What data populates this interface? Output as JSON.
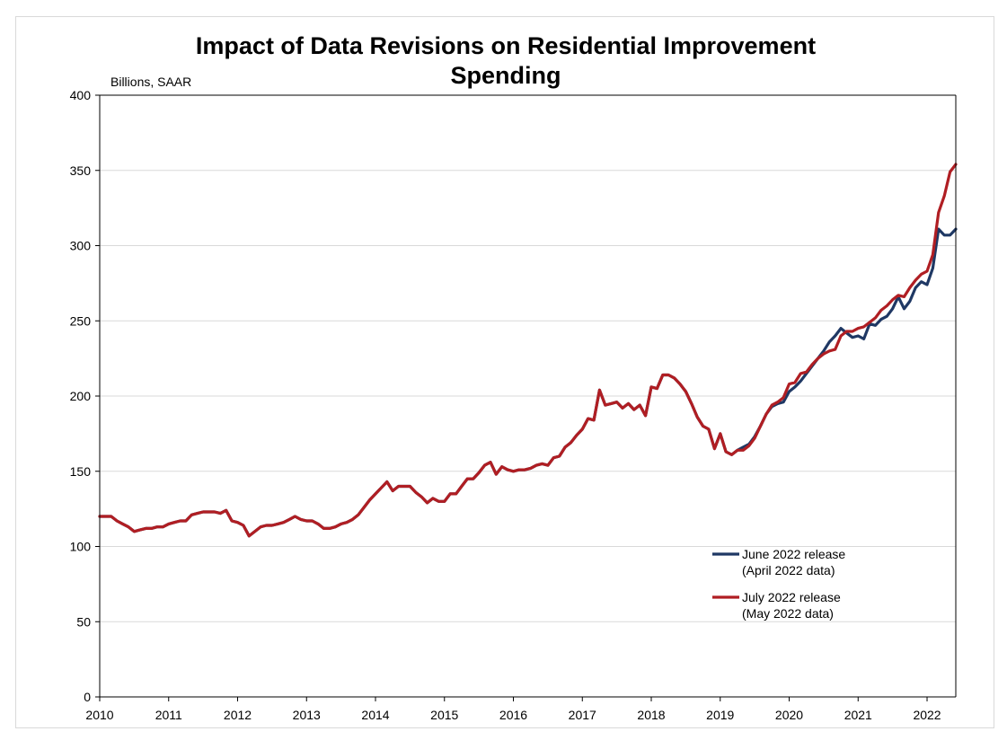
{
  "chart_data": {
    "type": "line",
    "title_lines": [
      "Impact of Data Revisions on Residential Improvement",
      "Spending"
    ],
    "unit_label": "Billions, SAAR",
    "xlim": [
      2010.0,
      2022.4167
    ],
    "ylim": [
      0,
      400
    ],
    "yticks": [
      0,
      50,
      100,
      150,
      200,
      250,
      300,
      350,
      400
    ],
    "xticks": [
      "2010",
      "2011",
      "2012",
      "2013",
      "2014",
      "2015",
      "2016",
      "2017",
      "2018",
      "2019",
      "2020",
      "2021",
      "2022"
    ],
    "grid": "horizontal",
    "legend_position": "bottom-right",
    "series": [
      {
        "name_lines": [
          "June 2022 release",
          "(April 2022 data)"
        ],
        "color": "#1f3864",
        "points": [
          [
            2010.0,
            120
          ],
          [
            2010.083,
            120
          ],
          [
            2010.167,
            120
          ],
          [
            2010.25,
            117
          ],
          [
            2010.333,
            115
          ],
          [
            2010.417,
            113
          ],
          [
            2010.5,
            110
          ],
          [
            2010.583,
            111
          ],
          [
            2010.667,
            112
          ],
          [
            2010.75,
            112
          ],
          [
            2010.833,
            113
          ],
          [
            2010.917,
            113
          ],
          [
            2011.0,
            115
          ],
          [
            2011.083,
            116
          ],
          [
            2011.167,
            117
          ],
          [
            2011.25,
            117
          ],
          [
            2011.333,
            121
          ],
          [
            2011.417,
            122
          ],
          [
            2011.5,
            123
          ],
          [
            2011.583,
            123
          ],
          [
            2011.667,
            123
          ],
          [
            2011.75,
            122
          ],
          [
            2011.833,
            124
          ],
          [
            2011.917,
            117
          ],
          [
            2012.0,
            116
          ],
          [
            2012.083,
            114
          ],
          [
            2012.167,
            107
          ],
          [
            2012.25,
            110
          ],
          [
            2012.333,
            113
          ],
          [
            2012.417,
            114
          ],
          [
            2012.5,
            114
          ],
          [
            2012.583,
            115
          ],
          [
            2012.667,
            116
          ],
          [
            2012.75,
            118
          ],
          [
            2012.833,
            120
          ],
          [
            2012.917,
            118
          ],
          [
            2013.0,
            117
          ],
          [
            2013.083,
            117
          ],
          [
            2013.167,
            115
          ],
          [
            2013.25,
            112
          ],
          [
            2013.333,
            112
          ],
          [
            2013.417,
            113
          ],
          [
            2013.5,
            115
          ],
          [
            2013.583,
            116
          ],
          [
            2013.667,
            118
          ],
          [
            2013.75,
            121
          ],
          [
            2013.833,
            126
          ],
          [
            2013.917,
            131
          ],
          [
            2014.0,
            135
          ],
          [
            2014.083,
            139
          ],
          [
            2014.167,
            143
          ],
          [
            2014.25,
            137
          ],
          [
            2014.333,
            140
          ],
          [
            2014.417,
            140
          ],
          [
            2014.5,
            140
          ],
          [
            2014.583,
            136
          ],
          [
            2014.667,
            133
          ],
          [
            2014.75,
            129
          ],
          [
            2014.833,
            132
          ],
          [
            2014.917,
            130
          ],
          [
            2015.0,
            130
          ],
          [
            2015.083,
            135
          ],
          [
            2015.167,
            135
          ],
          [
            2015.25,
            140
          ],
          [
            2015.333,
            145
          ],
          [
            2015.417,
            145
          ],
          [
            2015.5,
            149
          ],
          [
            2015.583,
            154
          ],
          [
            2015.667,
            156
          ],
          [
            2015.75,
            148
          ],
          [
            2015.833,
            153
          ],
          [
            2015.917,
            151
          ],
          [
            2016.0,
            150
          ],
          [
            2016.083,
            151
          ],
          [
            2016.167,
            151
          ],
          [
            2016.25,
            152
          ],
          [
            2016.333,
            154
          ],
          [
            2016.417,
            155
          ],
          [
            2016.5,
            154
          ],
          [
            2016.583,
            159
          ],
          [
            2016.667,
            160
          ],
          [
            2016.75,
            166
          ],
          [
            2016.833,
            169
          ],
          [
            2016.917,
            174
          ],
          [
            2017.0,
            178
          ],
          [
            2017.083,
            185
          ],
          [
            2017.167,
            184
          ],
          [
            2017.25,
            204
          ],
          [
            2017.333,
            194
          ],
          [
            2017.417,
            195
          ],
          [
            2017.5,
            196
          ],
          [
            2017.583,
            192
          ],
          [
            2017.667,
            195
          ],
          [
            2017.75,
            191
          ],
          [
            2017.833,
            194
          ],
          [
            2017.917,
            187
          ],
          [
            2018.0,
            206
          ],
          [
            2018.083,
            205
          ],
          [
            2018.167,
            214
          ],
          [
            2018.25,
            214
          ],
          [
            2018.333,
            212
          ],
          [
            2018.417,
            208
          ],
          [
            2018.5,
            203
          ],
          [
            2018.583,
            195
          ],
          [
            2018.667,
            186
          ],
          [
            2018.75,
            180
          ],
          [
            2018.833,
            178
          ],
          [
            2018.917,
            165
          ],
          [
            2019.0,
            175
          ],
          [
            2019.083,
            163
          ],
          [
            2019.167,
            161
          ],
          [
            2019.25,
            164
          ],
          [
            2019.333,
            166
          ],
          [
            2019.417,
            168
          ],
          [
            2019.5,
            173
          ],
          [
            2019.583,
            180
          ],
          [
            2019.667,
            188
          ],
          [
            2019.75,
            193
          ],
          [
            2019.833,
            195
          ],
          [
            2019.917,
            196
          ],
          [
            2020.0,
            203
          ],
          [
            2020.083,
            206
          ],
          [
            2020.167,
            210
          ],
          [
            2020.25,
            215
          ],
          [
            2020.333,
            220
          ],
          [
            2020.417,
            225
          ],
          [
            2020.5,
            230
          ],
          [
            2020.583,
            236
          ],
          [
            2020.667,
            240
          ],
          [
            2020.75,
            245
          ],
          [
            2020.833,
            242
          ],
          [
            2020.917,
            239
          ],
          [
            2021.0,
            240
          ],
          [
            2021.083,
            238
          ],
          [
            2021.167,
            248
          ],
          [
            2021.25,
            247
          ],
          [
            2021.333,
            251
          ],
          [
            2021.417,
            253
          ],
          [
            2021.5,
            258
          ],
          [
            2021.583,
            266
          ],
          [
            2021.667,
            258
          ],
          [
            2021.75,
            263
          ],
          [
            2021.833,
            272
          ],
          [
            2021.917,
            276
          ],
          [
            2022.0,
            274
          ],
          [
            2022.083,
            285
          ],
          [
            2022.167,
            311
          ],
          [
            2022.25,
            307
          ],
          [
            2022.333,
            307
          ],
          [
            2022.417,
            311
          ]
        ]
      },
      {
        "name_lines": [
          "July 2022 release",
          "(May 2022 data)"
        ],
        "color": "#b01e23",
        "points": [
          [
            2010.0,
            120
          ],
          [
            2010.083,
            120
          ],
          [
            2010.167,
            120
          ],
          [
            2010.25,
            117
          ],
          [
            2010.333,
            115
          ],
          [
            2010.417,
            113
          ],
          [
            2010.5,
            110
          ],
          [
            2010.583,
            111
          ],
          [
            2010.667,
            112
          ],
          [
            2010.75,
            112
          ],
          [
            2010.833,
            113
          ],
          [
            2010.917,
            113
          ],
          [
            2011.0,
            115
          ],
          [
            2011.083,
            116
          ],
          [
            2011.167,
            117
          ],
          [
            2011.25,
            117
          ],
          [
            2011.333,
            121
          ],
          [
            2011.417,
            122
          ],
          [
            2011.5,
            123
          ],
          [
            2011.583,
            123
          ],
          [
            2011.667,
            123
          ],
          [
            2011.75,
            122
          ],
          [
            2011.833,
            124
          ],
          [
            2011.917,
            117
          ],
          [
            2012.0,
            116
          ],
          [
            2012.083,
            114
          ],
          [
            2012.167,
            107
          ],
          [
            2012.25,
            110
          ],
          [
            2012.333,
            113
          ],
          [
            2012.417,
            114
          ],
          [
            2012.5,
            114
          ],
          [
            2012.583,
            115
          ],
          [
            2012.667,
            116
          ],
          [
            2012.75,
            118
          ],
          [
            2012.833,
            120
          ],
          [
            2012.917,
            118
          ],
          [
            2013.0,
            117
          ],
          [
            2013.083,
            117
          ],
          [
            2013.167,
            115
          ],
          [
            2013.25,
            112
          ],
          [
            2013.333,
            112
          ],
          [
            2013.417,
            113
          ],
          [
            2013.5,
            115
          ],
          [
            2013.583,
            116
          ],
          [
            2013.667,
            118
          ],
          [
            2013.75,
            121
          ],
          [
            2013.833,
            126
          ],
          [
            2013.917,
            131
          ],
          [
            2014.0,
            135
          ],
          [
            2014.083,
            139
          ],
          [
            2014.167,
            143
          ],
          [
            2014.25,
            137
          ],
          [
            2014.333,
            140
          ],
          [
            2014.417,
            140
          ],
          [
            2014.5,
            140
          ],
          [
            2014.583,
            136
          ],
          [
            2014.667,
            133
          ],
          [
            2014.75,
            129
          ],
          [
            2014.833,
            132
          ],
          [
            2014.917,
            130
          ],
          [
            2015.0,
            130
          ],
          [
            2015.083,
            135
          ],
          [
            2015.167,
            135
          ],
          [
            2015.25,
            140
          ],
          [
            2015.333,
            145
          ],
          [
            2015.417,
            145
          ],
          [
            2015.5,
            149
          ],
          [
            2015.583,
            154
          ],
          [
            2015.667,
            156
          ],
          [
            2015.75,
            148
          ],
          [
            2015.833,
            153
          ],
          [
            2015.917,
            151
          ],
          [
            2016.0,
            150
          ],
          [
            2016.083,
            151
          ],
          [
            2016.167,
            151
          ],
          [
            2016.25,
            152
          ],
          [
            2016.333,
            154
          ],
          [
            2016.417,
            155
          ],
          [
            2016.5,
            154
          ],
          [
            2016.583,
            159
          ],
          [
            2016.667,
            160
          ],
          [
            2016.75,
            166
          ],
          [
            2016.833,
            169
          ],
          [
            2016.917,
            174
          ],
          [
            2017.0,
            178
          ],
          [
            2017.083,
            185
          ],
          [
            2017.167,
            184
          ],
          [
            2017.25,
            204
          ],
          [
            2017.333,
            194
          ],
          [
            2017.417,
            195
          ],
          [
            2017.5,
            196
          ],
          [
            2017.583,
            192
          ],
          [
            2017.667,
            195
          ],
          [
            2017.75,
            191
          ],
          [
            2017.833,
            194
          ],
          [
            2017.917,
            187
          ],
          [
            2018.0,
            206
          ],
          [
            2018.083,
            205
          ],
          [
            2018.167,
            214
          ],
          [
            2018.25,
            214
          ],
          [
            2018.333,
            212
          ],
          [
            2018.417,
            208
          ],
          [
            2018.5,
            203
          ],
          [
            2018.583,
            195
          ],
          [
            2018.667,
            186
          ],
          [
            2018.75,
            180
          ],
          [
            2018.833,
            178
          ],
          [
            2018.917,
            165
          ],
          [
            2019.0,
            175
          ],
          [
            2019.083,
            163
          ],
          [
            2019.167,
            161
          ],
          [
            2019.25,
            164
          ],
          [
            2019.333,
            164
          ],
          [
            2019.417,
            167
          ],
          [
            2019.5,
            172
          ],
          [
            2019.583,
            180
          ],
          [
            2019.667,
            188
          ],
          [
            2019.75,
            194
          ],
          [
            2019.833,
            196
          ],
          [
            2019.917,
            199
          ],
          [
            2020.0,
            208
          ],
          [
            2020.083,
            209
          ],
          [
            2020.167,
            215
          ],
          [
            2020.25,
            216
          ],
          [
            2020.333,
            221
          ],
          [
            2020.417,
            225
          ],
          [
            2020.5,
            228
          ],
          [
            2020.583,
            230
          ],
          [
            2020.667,
            231
          ],
          [
            2020.75,
            240
          ],
          [
            2020.833,
            243
          ],
          [
            2020.917,
            243
          ],
          [
            2021.0,
            245
          ],
          [
            2021.083,
            246
          ],
          [
            2021.167,
            249
          ],
          [
            2021.25,
            252
          ],
          [
            2021.333,
            257
          ],
          [
            2021.417,
            260
          ],
          [
            2021.5,
            264
          ],
          [
            2021.583,
            267
          ],
          [
            2021.667,
            266
          ],
          [
            2021.75,
            272
          ],
          [
            2021.833,
            277
          ],
          [
            2021.917,
            281
          ],
          [
            2022.0,
            283
          ],
          [
            2022.083,
            294
          ],
          [
            2022.167,
            322
          ],
          [
            2022.25,
            333
          ],
          [
            2022.333,
            349
          ],
          [
            2022.417,
            354
          ]
        ]
      }
    ]
  }
}
